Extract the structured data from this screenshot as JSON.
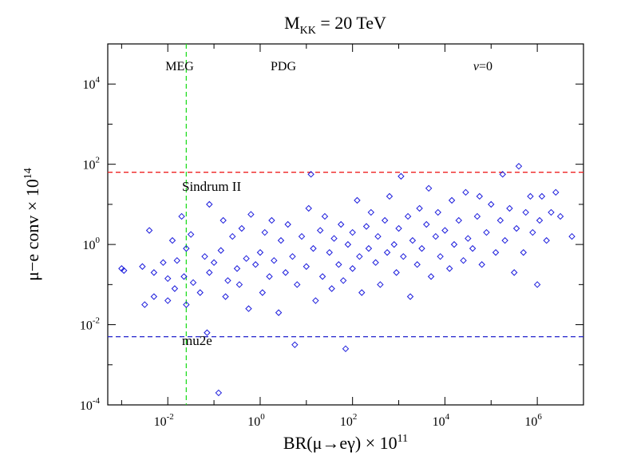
{
  "chart_data": {
    "type": "scatter",
    "title": {
      "base": "M",
      "sub": "KK",
      "rest": " = 20 TeV"
    },
    "xlabel": {
      "pre": "BR(μ→eγ) × 10",
      "exp": "11"
    },
    "ylabel": {
      "pre": "μ−e conv × 10",
      "exp": "14"
    },
    "x_scale": "log10",
    "y_scale": "log10",
    "xlim_log10": [
      -3.3,
      7.0
    ],
    "ylim_log10": [
      -4,
      5
    ],
    "x_ticks": [
      {
        "base": "10",
        "exp": "-2",
        "log10": -2
      },
      {
        "base": "10",
        "exp": "0",
        "log10": 0
      },
      {
        "base": "10",
        "exp": "2",
        "log10": 2
      },
      {
        "base": "10",
        "exp": "4",
        "log10": 4
      },
      {
        "base": "10",
        "exp": "6",
        "log10": 6
      }
    ],
    "y_ticks": [
      {
        "base": "10",
        "exp": "-4",
        "log10": -4
      },
      {
        "base": "10",
        "exp": "-2",
        "log10": -2
      },
      {
        "base": "10",
        "exp": "0",
        "log10": 0
      },
      {
        "base": "10",
        "exp": "2",
        "log10": 2
      },
      {
        "base": "10",
        "exp": "4",
        "log10": 4
      }
    ],
    "reference_lines": [
      {
        "name": "MEG",
        "orientation": "vertical",
        "log10": -1.6,
        "color": "#22dd22",
        "label": "MEG"
      },
      {
        "name": "Sindrum II",
        "orientation": "horizontal",
        "log10": 1.8,
        "color": "#ee2222",
        "label": "Sindrum II"
      },
      {
        "name": "mu2e",
        "orientation": "horizontal",
        "log10": -2.3,
        "color": "#2222cc",
        "label": "mu2e"
      }
    ],
    "annotations": [
      {
        "name": "PDG",
        "text": "PDG"
      },
      {
        "name": "nu-zero",
        "symbol": "ν",
        "text": "=0"
      }
    ],
    "series": [
      {
        "name": "model points",
        "marker": "diamond",
        "color": "#1a1adc",
        "points_log10": [
          [
            -3.0,
            -0.6
          ],
          [
            -2.95,
            -0.65
          ],
          [
            -2.55,
            -0.55
          ],
          [
            -2.5,
            -1.5
          ],
          [
            -2.4,
            0.35
          ],
          [
            -2.3,
            -0.7
          ],
          [
            -2.3,
            -1.3
          ],
          [
            -2.1,
            -0.45
          ],
          [
            -2.0,
            -0.85
          ],
          [
            -2.0,
            -1.4
          ],
          [
            -1.9,
            0.1
          ],
          [
            -1.85,
            -1.1
          ],
          [
            -1.8,
            -0.4
          ],
          [
            -1.7,
            0.7
          ],
          [
            -1.65,
            -0.8
          ],
          [
            -1.6,
            -1.5
          ],
          [
            -1.6,
            -0.1
          ],
          [
            -1.5,
            0.25
          ],
          [
            -1.45,
            -0.95
          ],
          [
            -1.3,
            -1.2
          ],
          [
            -1.2,
            -0.3
          ],
          [
            -1.15,
            -2.2
          ],
          [
            -1.1,
            -0.7
          ],
          [
            -1.1,
            1.0
          ],
          [
            -1.0,
            -0.45
          ],
          [
            -0.9,
            -3.7
          ],
          [
            -0.85,
            -0.15
          ],
          [
            -0.8,
            0.6
          ],
          [
            -0.75,
            -1.3
          ],
          [
            -0.7,
            -0.9
          ],
          [
            -0.6,
            0.2
          ],
          [
            -0.5,
            -0.6
          ],
          [
            -0.45,
            -1.0
          ],
          [
            -0.4,
            0.4
          ],
          [
            -0.3,
            -0.35
          ],
          [
            -0.25,
            -1.6
          ],
          [
            -0.2,
            0.75
          ],
          [
            -0.1,
            -0.5
          ],
          [
            0.0,
            -0.2
          ],
          [
            0.05,
            -1.2
          ],
          [
            0.1,
            0.3
          ],
          [
            0.2,
            -0.8
          ],
          [
            0.25,
            0.6
          ],
          [
            0.3,
            -0.4
          ],
          [
            0.4,
            -1.7
          ],
          [
            0.45,
            0.1
          ],
          [
            0.55,
            -0.7
          ],
          [
            0.6,
            0.5
          ],
          [
            0.7,
            -0.3
          ],
          [
            0.75,
            -2.5
          ],
          [
            0.8,
            -1.0
          ],
          [
            0.9,
            0.2
          ],
          [
            1.0,
            -0.55
          ],
          [
            1.05,
            0.9
          ],
          [
            1.1,
            1.75
          ],
          [
            1.15,
            -0.1
          ],
          [
            1.2,
            -1.4
          ],
          [
            1.3,
            0.35
          ],
          [
            1.35,
            -0.8
          ],
          [
            1.4,
            0.7
          ],
          [
            1.5,
            -0.2
          ],
          [
            1.55,
            -1.1
          ],
          [
            1.6,
            0.15
          ],
          [
            1.7,
            -0.5
          ],
          [
            1.75,
            0.5
          ],
          [
            1.8,
            -0.9
          ],
          [
            1.85,
            -2.6
          ],
          [
            1.9,
            0.0
          ],
          [
            2.0,
            0.3
          ],
          [
            2.0,
            -0.6
          ],
          [
            2.1,
            1.1
          ],
          [
            2.15,
            -0.3
          ],
          [
            2.2,
            -1.2
          ],
          [
            2.3,
            0.45
          ],
          [
            2.35,
            -0.1
          ],
          [
            2.4,
            0.8
          ],
          [
            2.5,
            -0.45
          ],
          [
            2.55,
            0.2
          ],
          [
            2.6,
            -1.0
          ],
          [
            2.7,
            0.6
          ],
          [
            2.75,
            -0.2
          ],
          [
            2.8,
            1.2
          ],
          [
            2.9,
            0.0
          ],
          [
            2.95,
            -0.7
          ],
          [
            3.0,
            0.4
          ],
          [
            3.05,
            1.7
          ],
          [
            3.1,
            -0.3
          ],
          [
            3.2,
            0.7
          ],
          [
            3.25,
            -1.3
          ],
          [
            3.3,
            0.1
          ],
          [
            3.4,
            -0.5
          ],
          [
            3.45,
            0.9
          ],
          [
            3.5,
            -0.1
          ],
          [
            3.6,
            0.5
          ],
          [
            3.65,
            1.4
          ],
          [
            3.7,
            -0.8
          ],
          [
            3.8,
            0.2
          ],
          [
            3.85,
            0.8
          ],
          [
            3.9,
            -0.3
          ],
          [
            4.0,
            0.35
          ],
          [
            4.1,
            -0.6
          ],
          [
            4.15,
            1.1
          ],
          [
            4.2,
            0.0
          ],
          [
            4.3,
            0.6
          ],
          [
            4.4,
            -0.4
          ],
          [
            4.45,
            1.3
          ],
          [
            4.5,
            0.15
          ],
          [
            4.6,
            -0.1
          ],
          [
            4.7,
            0.7
          ],
          [
            4.75,
            1.2
          ],
          [
            4.8,
            -0.5
          ],
          [
            4.9,
            0.3
          ],
          [
            5.0,
            1.0
          ],
          [
            5.1,
            -0.2
          ],
          [
            5.2,
            0.6
          ],
          [
            5.25,
            1.75
          ],
          [
            5.3,
            0.1
          ],
          [
            5.4,
            0.9
          ],
          [
            5.5,
            -0.7
          ],
          [
            5.55,
            0.4
          ],
          [
            5.6,
            1.95
          ],
          [
            5.7,
            -0.2
          ],
          [
            5.75,
            0.8
          ],
          [
            5.85,
            1.2
          ],
          [
            5.9,
            0.3
          ],
          [
            6.0,
            -1.0
          ],
          [
            6.05,
            0.6
          ],
          [
            6.1,
            1.2
          ],
          [
            6.2,
            0.1
          ],
          [
            6.3,
            0.8
          ],
          [
            6.4,
            1.3
          ],
          [
            6.5,
            0.7
          ],
          [
            6.75,
            0.2
          ]
        ]
      }
    ]
  }
}
